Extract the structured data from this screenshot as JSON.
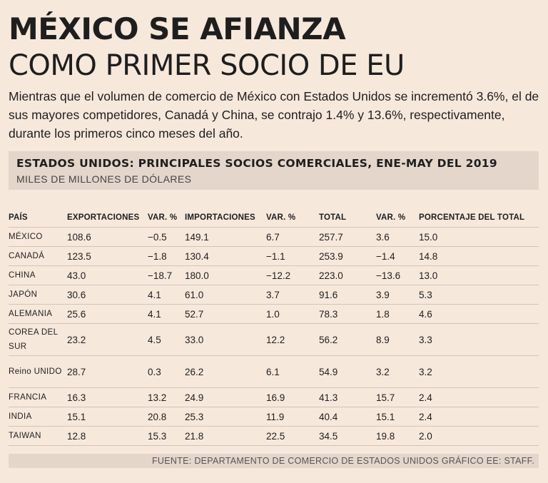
{
  "title": {
    "line1": "MÉXICO SE AFIANZA",
    "line2": "COMO PRIMER SOCIO DE EU"
  },
  "intro": "Mientras que el volumen de comercio de México con Estados Unidos se incrementó 3.6%, el de sus mayores competidores, Canadá y China, se contrajo 1.4% y 13.6%, respectivamente, durante los primeros cinco meses del año.",
  "table_header": {
    "title": "ESTADOS UNIDOS: PRINCIPALES SOCIOS COMERCIALES, ENE-MAY DEL 2019",
    "subtitle": "MILES DE MILLONES DE DÓLARES"
  },
  "columns": [
    "PAÍS",
    "EXPORTACIONES",
    "VAR. %",
    "IMPORTACIONES",
    "VAR. %",
    "TOTAL",
    "VAR. %",
    "PORCENTAJE DEL TOTAL"
  ],
  "rows": [
    [
      "MÉXICO",
      "108.6",
      "−0.5",
      "149.1",
      "6.7",
      "257.7",
      "3.6",
      "15.0"
    ],
    [
      "CANADÁ",
      "123.5",
      "−1.8",
      "130.4",
      "−1.1",
      "253.9",
      "−1.4",
      "14.8"
    ],
    [
      "CHINA",
      "43.0",
      "−18.7",
      "180.0",
      "−12.2",
      "223.0",
      "−13.6",
      "13.0"
    ],
    [
      "JAPÓN",
      "30.6",
      "4.1",
      "61.0",
      "3.7",
      "91.6",
      "3.9",
      "5.3"
    ],
    [
      "ALEMANIA",
      "25.6",
      "4.1",
      "52.7",
      "1.0",
      "78.3",
      "1.8",
      "4.6"
    ],
    [
      "COREA DEL SUR",
      "23.2",
      "4.5",
      "33.0",
      "12.2",
      "56.2",
      "8.9",
      "3.3"
    ],
    [
      "Reino UNIDO",
      "28.7",
      "0.3",
      "26.2",
      "6.1",
      "54.9",
      "3.2",
      "3.2"
    ],
    [
      "FRANCIA",
      "16.3",
      "13.2",
      "24.9",
      "16.9",
      "41.3",
      "15.7",
      "2.4"
    ],
    [
      "INDIA",
      "15.1",
      "20.8",
      "25.3",
      "11.9",
      "40.4",
      "15.1",
      "2.4"
    ],
    [
      "TAIWAN",
      "12.8",
      "15.3",
      "21.8",
      "22.5",
      "34.5",
      "19.8",
      "2.0"
    ]
  ],
  "source": "FUENTE: DEPARTAMENTO DE COMERCIO DE ESTADOS UNIDOS GRÁFICO EE: STAFF."
}
